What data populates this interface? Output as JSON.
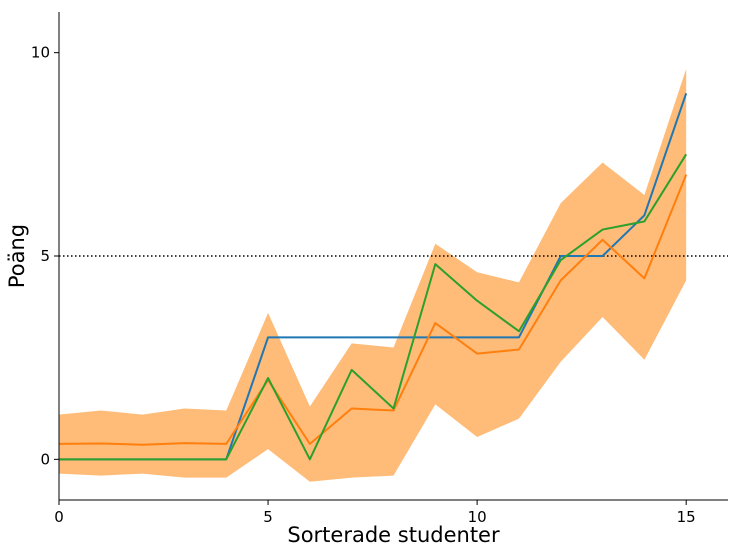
{
  "chart_data": {
    "type": "line",
    "xlabel": "Sorterade studenter",
    "ylabel": "Poäng",
    "xlim": [
      0,
      16
    ],
    "ylim": [
      -1,
      11
    ],
    "xticks": [
      0,
      5,
      10,
      15
    ],
    "yticks": [
      0,
      5,
      10
    ],
    "grid": false,
    "reference_line": {
      "y": 5,
      "style": "dotted",
      "color": "#000000"
    },
    "x": [
      0,
      1,
      2,
      3,
      4,
      5,
      6,
      7,
      8,
      9,
      10,
      11,
      12,
      13,
      14,
      15
    ],
    "band": {
      "color": "#ffbb78",
      "upper": [
        1.1,
        1.2,
        1.1,
        1.25,
        1.2,
        3.6,
        1.3,
        2.85,
        2.75,
        5.3,
        4.6,
        4.35,
        6.3,
        7.3,
        6.5,
        9.6
      ],
      "lower": [
        -0.35,
        -0.4,
        -0.35,
        -0.45,
        -0.45,
        0.25,
        -0.55,
        -0.45,
        -0.4,
        1.35,
        0.55,
        1.0,
        2.4,
        3.5,
        2.45,
        4.4
      ]
    },
    "series": [
      {
        "color": "#1f77b4",
        "values": [
          0,
          0,
          0,
          0,
          0,
          3,
          3,
          3,
          3,
          3,
          3,
          3,
          5,
          5,
          6,
          9
        ]
      },
      {
        "color": "#ff7f0e",
        "values": [
          0.38,
          0.39,
          0.36,
          0.4,
          0.38,
          1.95,
          0.38,
          1.25,
          1.2,
          3.35,
          2.6,
          2.7,
          4.4,
          5.4,
          4.45,
          7.0
        ]
      },
      {
        "color": "#2ca02c",
        "values": [
          0,
          0,
          0,
          0,
          0,
          2.0,
          0,
          2.2,
          1.25,
          4.8,
          3.9,
          3.15,
          4.9,
          5.65,
          5.85,
          7.5
        ]
      }
    ]
  }
}
